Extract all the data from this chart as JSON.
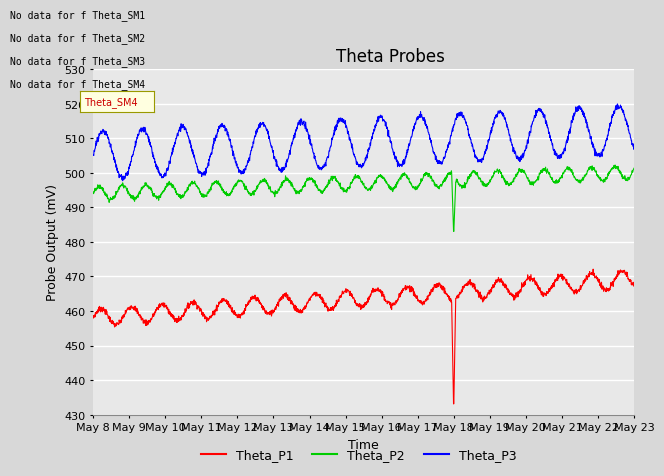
{
  "title": "Theta Probes",
  "xlabel": "Time",
  "ylabel": "Probe Output (mV)",
  "ylim": [
    430,
    530
  ],
  "yticks": [
    430,
    440,
    450,
    460,
    470,
    480,
    490,
    500,
    510,
    520,
    530
  ],
  "xtick_labels": [
    "May 8",
    "May 9",
    "May 10",
    "May 11",
    "May 12",
    "May 13",
    "May 14",
    "May 15",
    "May 16",
    "May 17",
    "May 18",
    "May 19",
    "May 20",
    "May 21",
    "May 22",
    "May 23"
  ],
  "annotations": [
    "No data for f Theta_SM1",
    "No data for f Theta_SM2",
    "No data for f Theta_SM3",
    "No data for f Theta_SM4"
  ],
  "legend": [
    {
      "label": "Theta_P1",
      "color": "#ff0000"
    },
    {
      "label": "Theta_P2",
      "color": "#00cc00"
    },
    {
      "label": "Theta_P3",
      "color": "#0000ff"
    }
  ],
  "bg_color": "#d8d8d8",
  "plot_bg_color": "#e8e8e8",
  "grid_color": "#ffffff",
  "p1_base": 458,
  "p1_trend": 0.75,
  "p1_amp": 2.5,
  "p1_period": 0.85,
  "p2_base": 494,
  "p2_trend": 0.4,
  "p2_amp": 2.0,
  "p2_period": 0.65,
  "p3_base": 505,
  "p3_trend": 0.5,
  "p3_amp": 7.0,
  "p3_period": 1.1,
  "spike_day": 18,
  "p1_spike_val": 431,
  "p2_spike_val": 482,
  "tooltip_text": "Theta_SM4"
}
